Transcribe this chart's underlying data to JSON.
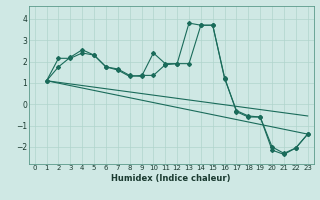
{
  "xlabel": "Humidex (Indice chaleur)",
  "bg_color": "#cfe8e4",
  "grid_color": "#b0d4cc",
  "line_color": "#1a6b5a",
  "xlim": [
    -0.5,
    23.5
  ],
  "ylim": [
    -2.8,
    4.6
  ],
  "yticks": [
    -2,
    -1,
    0,
    1,
    2,
    3,
    4
  ],
  "xticks": [
    0,
    1,
    2,
    3,
    4,
    5,
    6,
    7,
    8,
    9,
    10,
    11,
    12,
    13,
    14,
    15,
    16,
    17,
    18,
    19,
    20,
    21,
    22,
    23
  ],
  "line1_x": [
    1,
    2,
    3,
    4,
    5,
    6,
    7,
    8,
    9,
    10,
    11,
    12,
    13,
    14,
    15,
    16,
    17,
    18,
    19,
    20,
    21,
    22,
    23
  ],
  "line1_y": [
    1.1,
    2.15,
    2.15,
    2.4,
    2.3,
    1.75,
    1.6,
    1.3,
    1.35,
    1.35,
    1.85,
    1.9,
    3.8,
    3.7,
    3.7,
    1.2,
    -0.3,
    -0.55,
    -0.6,
    -2.15,
    -2.35,
    -2.05,
    -1.4
  ],
  "line2_x": [
    1,
    2,
    3,
    4,
    5,
    6,
    7,
    8,
    9,
    10,
    11,
    12,
    13,
    14,
    15,
    16,
    17,
    18,
    19,
    20,
    21,
    22,
    23
  ],
  "line2_y": [
    1.1,
    1.75,
    2.2,
    2.55,
    2.3,
    1.75,
    1.65,
    1.35,
    1.3,
    2.4,
    1.9,
    1.9,
    1.9,
    3.7,
    3.7,
    1.25,
    -0.35,
    -0.6,
    -0.6,
    -2.0,
    -2.3,
    -2.05,
    -1.4
  ],
  "line3_x": [
    1,
    23
  ],
  "line3_y": [
    1.1,
    -0.55
  ],
  "line4_x": [
    1,
    23
  ],
  "line4_y": [
    1.1,
    -1.4
  ]
}
